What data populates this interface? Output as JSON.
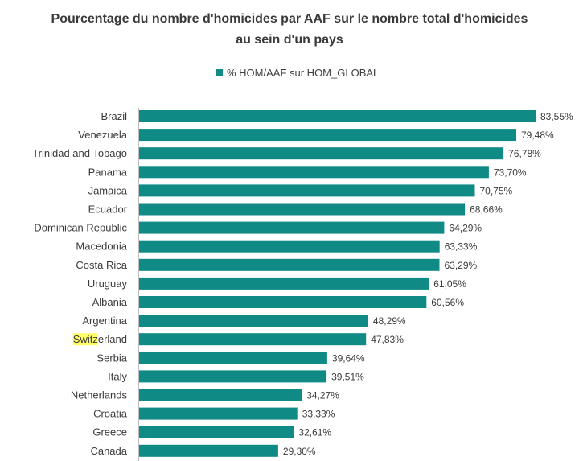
{
  "chart_data": {
    "type": "bar",
    "orientation": "horizontal",
    "title": "Pourcentage du nombre d'homicides par AAF sur le nombre total d'homicides au sein d'un pays",
    "title_lines": [
      "Pourcentage du nombre d'homicides par AAF sur le nombre total d'homicides",
      "au sein d'un pays"
    ],
    "legend": {
      "position": "top",
      "entries": [
        "% HOM/AAF sur HOM_GLOBAL"
      ]
    },
    "bar_color": "#0f8a85",
    "highlight": {
      "category": "Switzerland",
      "text": "Switz",
      "color": "#ffff66"
    },
    "categories": [
      "Brazil",
      "Venezuela",
      "Trinidad and Tobago",
      "Panama",
      "Jamaica",
      "Ecuador",
      "Dominican Republic",
      "Macedonia",
      "Costa Rica",
      "Uruguay",
      "Albania",
      "Argentina",
      "Switzerland",
      "Serbia",
      "Italy",
      "Netherlands",
      "Croatia",
      "Greece",
      "Canada"
    ],
    "series": [
      {
        "name": "% HOM/AAF sur HOM_GLOBAL",
        "values": [
          83.55,
          79.48,
          76.78,
          73.7,
          70.75,
          68.66,
          64.29,
          63.33,
          63.29,
          61.05,
          60.56,
          48.29,
          47.83,
          39.64,
          39.51,
          34.27,
          33.33,
          32.61,
          29.3
        ],
        "labels": [
          "83,55%",
          "79,48%",
          "76,78%",
          "73,70%",
          "70,75%",
          "68,66%",
          "64,29%",
          "63,33%",
          "63,29%",
          "61,05%",
          "60,56%",
          "48,29%",
          "47,83%",
          "39,64%",
          "39,51%",
          "34,27%",
          "33,33%",
          "32,61%",
          "29,30%"
        ]
      }
    ],
    "xlim": [
      0,
      85
    ],
    "grid": false
  }
}
